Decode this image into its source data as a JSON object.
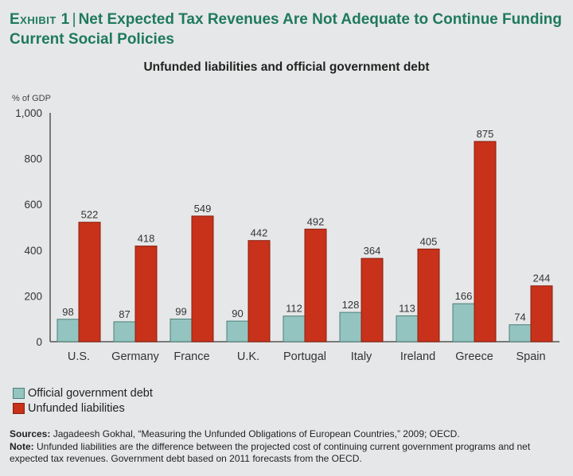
{
  "header": {
    "exhibit": "Exhibit 1",
    "separator": "|",
    "title": "Net Expected Tax Revenues Are Not Adequate to Continue Funding Current Social Policies",
    "subtitle": "Unfunded liabilities and official government debt"
  },
  "colors": {
    "title": "#1e7a5c",
    "official_debt": "#94c4bf",
    "official_debt_border": "#4a7f7b",
    "unfunded": "#c8311a",
    "unfunded_border": "#8a2010",
    "axis": "#555555",
    "background": "#e6e7e8"
  },
  "legend": [
    {
      "label": "Official government debt",
      "series": "official_debt"
    },
    {
      "label": "Unfunded liabilities",
      "series": "unfunded"
    }
  ],
  "footer": {
    "sources_label": "Sources:",
    "sources_text": "Jagadeesh Gokhal, “Measuring the Unfunded Obligations of European Countries,” 2009; OECD.",
    "note_label": "Note:",
    "note_text": "Unfunded liabilities are the difference between the projected cost of continuing current government programs and net expected tax revenues. Government debt based on 2011 forecasts from the OECD."
  },
  "chart_data": {
    "type": "bar",
    "title": "Unfunded liabilities and official government debt",
    "xlabel": "",
    "ylabel": "% of GDP",
    "ylim": [
      0,
      1000
    ],
    "yticks": [
      0,
      200,
      400,
      600,
      800,
      1000
    ],
    "ytick_labels": [
      "0",
      "200",
      "400",
      "600",
      "800",
      "1,000"
    ],
    "grid": false,
    "legend_position": "bottom-left",
    "categories": [
      "U.S.",
      "Germany",
      "France",
      "U.K.",
      "Portugal",
      "Italy",
      "Ireland",
      "Greece",
      "Spain"
    ],
    "series": [
      {
        "name": "Official government debt",
        "key": "official_debt",
        "values": [
          98,
          87,
          99,
          90,
          112,
          128,
          113,
          166,
          74
        ]
      },
      {
        "name": "Unfunded liabilities",
        "key": "unfunded",
        "values": [
          522,
          418,
          549,
          442,
          492,
          364,
          405,
          875,
          244
        ]
      }
    ]
  }
}
